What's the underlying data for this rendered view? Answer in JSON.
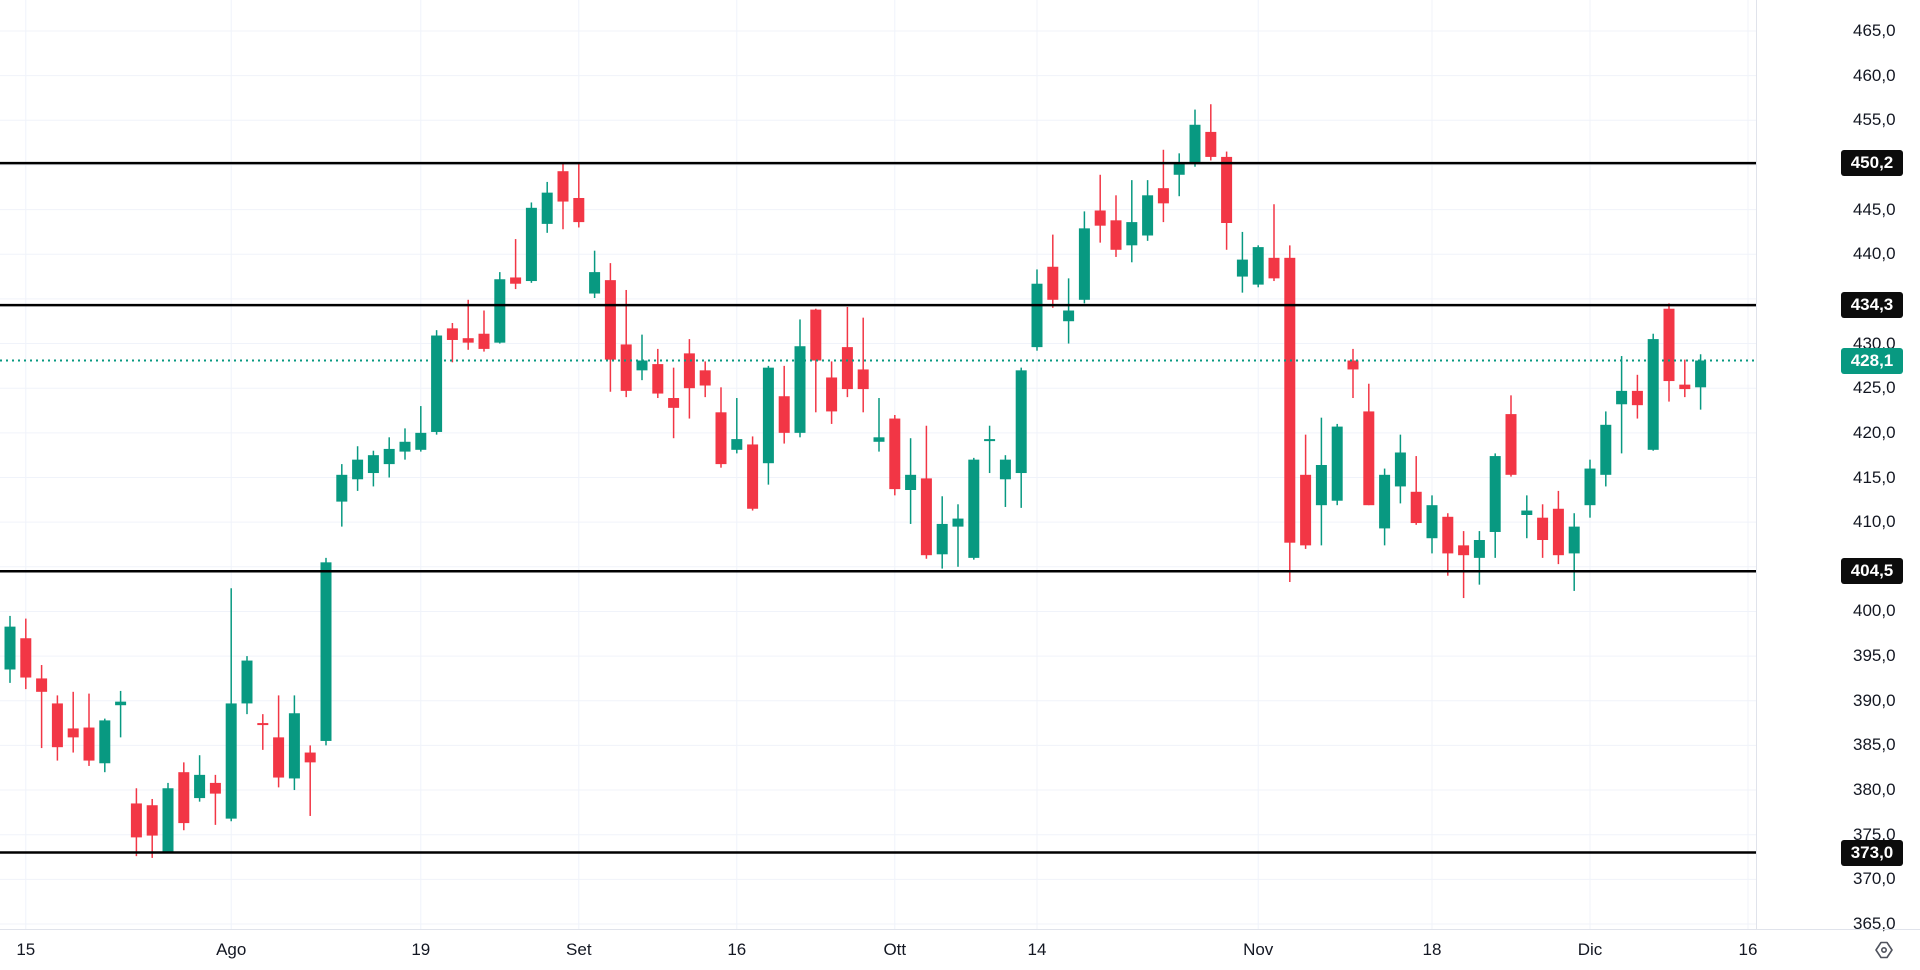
{
  "chart_data": {
    "type": "candlestick",
    "title": "",
    "legend_position": "none",
    "grid": true,
    "price_axis": {
      "min": 365.0,
      "max": 465.0,
      "step": 5.0,
      "tick_values": [
        465.0,
        460.0,
        455.0,
        450.0,
        445.0,
        440.0,
        435.0,
        430.0,
        425.0,
        420.0,
        415.0,
        410.0,
        405.0,
        400.0,
        395.0,
        390.0,
        385.0,
        380.0,
        375.0,
        370.0,
        365.0
      ],
      "decimal_separator": ","
    },
    "time_axis": {
      "ticks": [
        {
          "label": "15",
          "index": 1
        },
        {
          "label": "Ago",
          "index": 14
        },
        {
          "label": "19",
          "index": 26
        },
        {
          "label": "Set",
          "index": 36
        },
        {
          "label": "16",
          "index": 46
        },
        {
          "label": "Ott",
          "index": 56
        },
        {
          "label": "14",
          "index": 65
        },
        {
          "label": "Nov",
          "index": 79
        },
        {
          "label": "18",
          "index": 90
        },
        {
          "label": "Dic",
          "index": 100
        },
        {
          "label": "16",
          "index": 110
        }
      ]
    },
    "horizontal_levels": [
      {
        "value": 450.2,
        "label": "450,2"
      },
      {
        "value": 434.3,
        "label": "434,3"
      },
      {
        "value": 404.5,
        "label": "404,5"
      },
      {
        "value": 373.0,
        "label": "373,0"
      }
    ],
    "last_price": {
      "value": 428.1,
      "label": "428,1"
    },
    "colors": {
      "up": "#089981",
      "down": "#f23645",
      "level_line": "#000000",
      "last_price_line": "#089981",
      "grid": "#f0f3fa",
      "axis_text": "#131722",
      "badge_text": "#ffffff",
      "level_badge_bg": "#0c0c0c",
      "axis_border": "#e0e3eb"
    },
    "candles_ohlc": [
      [
        393.5,
        399.5,
        392.0,
        398.3
      ],
      [
        397.0,
        399.2,
        391.3,
        392.6
      ],
      [
        392.5,
        394.0,
        384.7,
        391.0
      ],
      [
        389.7,
        390.6,
        383.3,
        384.8
      ],
      [
        386.9,
        391.0,
        384.2,
        385.9
      ],
      [
        387.0,
        390.8,
        382.7,
        383.3
      ],
      [
        383.0,
        388.0,
        382.0,
        387.8
      ],
      [
        389.5,
        391.1,
        385.9,
        389.9
      ],
      [
        378.5,
        380.2,
        372.6,
        374.7
      ],
      [
        378.3,
        379.0,
        372.4,
        374.9
      ],
      [
        373.0,
        380.8,
        372.9,
        380.2
      ],
      [
        382.0,
        383.1,
        375.5,
        376.3
      ],
      [
        379.1,
        383.9,
        378.7,
        381.7
      ],
      [
        380.8,
        381.7,
        376.1,
        379.6
      ],
      [
        376.8,
        402.6,
        376.5,
        389.7
      ],
      [
        389.7,
        395.0,
        388.5,
        394.5
      ],
      [
        387.5,
        388.5,
        384.5,
        387.3
      ],
      [
        385.9,
        390.6,
        380.3,
        381.4
      ],
      [
        381.3,
        390.6,
        380.0,
        388.6
      ],
      [
        384.2,
        385.0,
        377.1,
        383.1
      ],
      [
        385.5,
        406.0,
        385.0,
        405.5
      ],
      [
        412.3,
        416.5,
        409.5,
        415.3
      ],
      [
        414.8,
        418.5,
        413.5,
        417.0
      ],
      [
        415.5,
        418.0,
        414.0,
        417.5
      ],
      [
        416.5,
        419.5,
        415.0,
        418.2
      ],
      [
        417.9,
        420.5,
        417.0,
        419.0
      ],
      [
        418.1,
        423.0,
        417.9,
        420.0
      ],
      [
        420.1,
        431.5,
        419.8,
        430.9
      ],
      [
        431.7,
        432.3,
        427.9,
        430.4
      ],
      [
        430.6,
        434.9,
        429.3,
        430.1
      ],
      [
        431.1,
        433.7,
        429.1,
        429.4
      ],
      [
        430.1,
        438.0,
        430.0,
        437.2
      ],
      [
        437.4,
        441.7,
        436.1,
        436.7
      ],
      [
        437.0,
        445.8,
        436.8,
        445.2
      ],
      [
        443.4,
        448.1,
        442.4,
        446.9
      ],
      [
        449.3,
        450.2,
        442.8,
        445.9
      ],
      [
        446.3,
        450.3,
        443.0,
        443.6
      ],
      [
        435.6,
        440.4,
        435.1,
        438.0
      ],
      [
        437.1,
        439.0,
        424.6,
        428.2
      ],
      [
        429.9,
        436.0,
        424.0,
        424.7
      ],
      [
        427.0,
        431.0,
        425.9,
        428.1
      ],
      [
        427.7,
        429.4,
        423.9,
        424.4
      ],
      [
        423.9,
        427.3,
        419.4,
        422.8
      ],
      [
        428.9,
        430.5,
        421.6,
        425.0
      ],
      [
        427.0,
        428.0,
        424.0,
        425.3
      ],
      [
        422.3,
        425.1,
        416.1,
        416.5
      ],
      [
        418.1,
        423.9,
        417.7,
        419.3
      ],
      [
        418.7,
        419.6,
        411.3,
        411.5
      ],
      [
        416.6,
        427.5,
        414.2,
        427.3
      ],
      [
        424.1,
        427.5,
        418.8,
        420.0
      ],
      [
        420.0,
        432.7,
        419.5,
        429.7
      ],
      [
        433.8,
        433.9,
        422.3,
        428.1
      ],
      [
        426.2,
        428.0,
        421.0,
        422.4
      ],
      [
        429.6,
        434.1,
        424.0,
        424.9
      ],
      [
        427.1,
        432.9,
        422.3,
        424.9
      ],
      [
        419.0,
        423.9,
        417.9,
        419.5
      ],
      [
        421.6,
        422.0,
        413.0,
        413.7
      ],
      [
        413.6,
        419.4,
        409.8,
        415.3
      ],
      [
        414.9,
        420.8,
        405.9,
        406.3
      ],
      [
        406.4,
        412.9,
        404.8,
        409.8
      ],
      [
        409.5,
        412.0,
        405.0,
        410.4
      ],
      [
        406.0,
        417.2,
        405.8,
        417.0
      ],
      [
        419.1,
        420.8,
        415.5,
        419.3
      ],
      [
        414.8,
        417.5,
        411.7,
        417.0
      ],
      [
        415.5,
        427.3,
        411.6,
        427.0
      ],
      [
        429.6,
        438.3,
        429.2,
        436.7
      ],
      [
        438.6,
        442.2,
        434.0,
        434.9
      ],
      [
        432.5,
        437.3,
        430.0,
        433.7
      ],
      [
        434.9,
        444.8,
        434.5,
        442.9
      ],
      [
        444.9,
        448.9,
        441.3,
        443.2
      ],
      [
        443.8,
        446.6,
        439.7,
        440.5
      ],
      [
        441.0,
        448.3,
        439.1,
        443.6
      ],
      [
        442.1,
        448.3,
        441.5,
        446.6
      ],
      [
        447.4,
        451.7,
        443.6,
        445.7
      ],
      [
        448.9,
        451.3,
        446.5,
        450.2
      ],
      [
        450.2,
        456.2,
        449.8,
        454.5
      ],
      [
        453.7,
        456.8,
        450.5,
        450.9
      ],
      [
        450.9,
        451.5,
        440.5,
        443.5
      ],
      [
        437.5,
        442.5,
        435.7,
        439.4
      ],
      [
        436.6,
        441.0,
        436.3,
        440.8
      ],
      [
        439.6,
        445.6,
        437.0,
        437.3
      ],
      [
        439.6,
        441.0,
        403.3,
        407.7
      ],
      [
        415.3,
        419.8,
        407.0,
        407.4
      ],
      [
        411.9,
        421.7,
        407.4,
        416.4
      ],
      [
        412.4,
        421.0,
        411.9,
        420.7
      ],
      [
        428.1,
        429.4,
        423.9,
        427.1
      ],
      [
        422.4,
        425.5,
        411.9,
        411.9
      ],
      [
        409.3,
        416.0,
        407.4,
        415.3
      ],
      [
        414.0,
        419.8,
        412.1,
        417.8
      ],
      [
        413.4,
        417.4,
        409.7,
        409.9
      ],
      [
        408.2,
        413.0,
        406.5,
        411.9
      ],
      [
        410.6,
        411.0,
        404.0,
        406.5
      ],
      [
        407.4,
        409.0,
        401.5,
        406.3
      ],
      [
        406.0,
        409.0,
        403.0,
        408.0
      ],
      [
        408.9,
        417.7,
        406.0,
        417.4
      ],
      [
        422.1,
        424.2,
        415.1,
        415.3
      ],
      [
        410.8,
        413.0,
        408.2,
        411.3
      ],
      [
        410.5,
        412.0,
        406.0,
        408.0
      ],
      [
        411.5,
        413.5,
        405.3,
        406.3
      ],
      [
        406.5,
        411.0,
        402.3,
        409.5
      ],
      [
        411.9,
        417.0,
        410.5,
        416.0
      ],
      [
        415.3,
        422.4,
        414.0,
        420.9
      ],
      [
        423.2,
        428.6,
        417.7,
        424.7
      ],
      [
        424.7,
        426.5,
        421.6,
        423.1
      ],
      [
        418.1,
        431.1,
        418.0,
        430.5
      ],
      [
        433.9,
        434.5,
        423.5,
        425.8
      ],
      [
        425.4,
        428.2,
        424.0,
        424.9
      ],
      [
        425.1,
        428.8,
        422.6,
        428.1
      ]
    ]
  },
  "icons": {
    "price_scale_settings": "price-scale-settings-icon"
  }
}
